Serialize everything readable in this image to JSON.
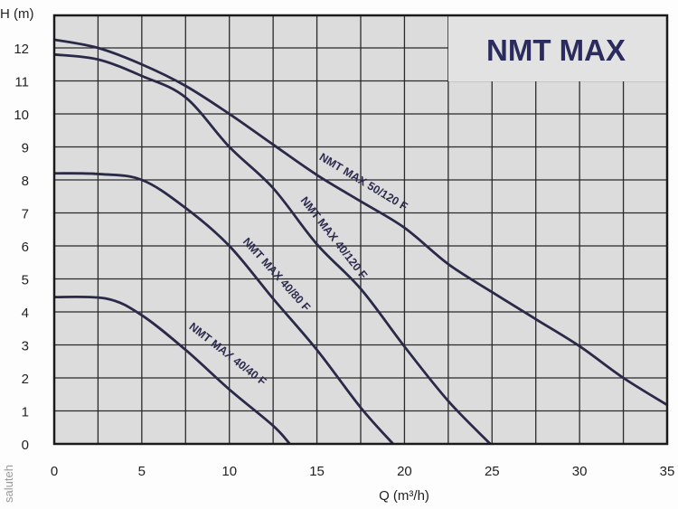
{
  "chart_data": {
    "type": "line",
    "title": "NMT MAX",
    "xlabel": "Q (m³/h)",
    "ylabel": "H (m)",
    "xlim": [
      0,
      35
    ],
    "ylim": [
      0,
      13
    ],
    "x_ticks": [
      0,
      5,
      10,
      15,
      20,
      25,
      30,
      35
    ],
    "y_ticks": [
      0,
      1,
      2,
      3,
      4,
      5,
      6,
      7,
      8,
      9,
      10,
      11,
      12
    ],
    "grid": true,
    "grid_x_step": 2.5,
    "grid_y_step": 1,
    "colors": {
      "curve": "#2a2a48",
      "plot_bg": "#dcdcdc",
      "grid": "#2a2a2a",
      "title": "#2b2b5e"
    },
    "series": [
      {
        "name": "NMT MAX 50/120 F",
        "points": [
          [
            0,
            12.25
          ],
          [
            2.5,
            12.0
          ],
          [
            5,
            11.5
          ],
          [
            7.5,
            10.85
          ],
          [
            10,
            10.0
          ],
          [
            12.5,
            9.07
          ],
          [
            15,
            8.15
          ],
          [
            17.5,
            7.35
          ],
          [
            20,
            6.55
          ],
          [
            22.5,
            5.45
          ],
          [
            25,
            4.6
          ],
          [
            27.5,
            3.78
          ],
          [
            30,
            2.96
          ],
          [
            32.5,
            2.0
          ],
          [
            35,
            1.18
          ]
        ]
      },
      {
        "name": "NMT MAX 40/120 F",
        "points": [
          [
            0,
            11.8
          ],
          [
            2.5,
            11.65
          ],
          [
            5,
            11.15
          ],
          [
            7.5,
            10.5
          ],
          [
            10,
            9.0
          ],
          [
            12.5,
            7.75
          ],
          [
            15,
            6.05
          ],
          [
            17.5,
            4.7
          ],
          [
            20,
            2.95
          ],
          [
            22.5,
            1.3
          ],
          [
            24.9,
            0
          ]
        ]
      },
      {
        "name": "NMT MAX 40/80 F",
        "points": [
          [
            0,
            8.2
          ],
          [
            2.5,
            8.18
          ],
          [
            5,
            8.0
          ],
          [
            7.5,
            7.15
          ],
          [
            10,
            6.0
          ],
          [
            12.5,
            4.4
          ],
          [
            15,
            2.85
          ],
          [
            17.5,
            1.1
          ],
          [
            19.35,
            0
          ]
        ]
      },
      {
        "name": "NMT MAX 40/40 F",
        "points": [
          [
            0,
            4.45
          ],
          [
            3,
            4.4
          ],
          [
            5,
            3.9
          ],
          [
            7.5,
            2.85
          ],
          [
            10,
            1.65
          ],
          [
            12.5,
            0.55
          ],
          [
            13.45,
            0
          ]
        ]
      }
    ]
  },
  "watermark": "saluteh"
}
